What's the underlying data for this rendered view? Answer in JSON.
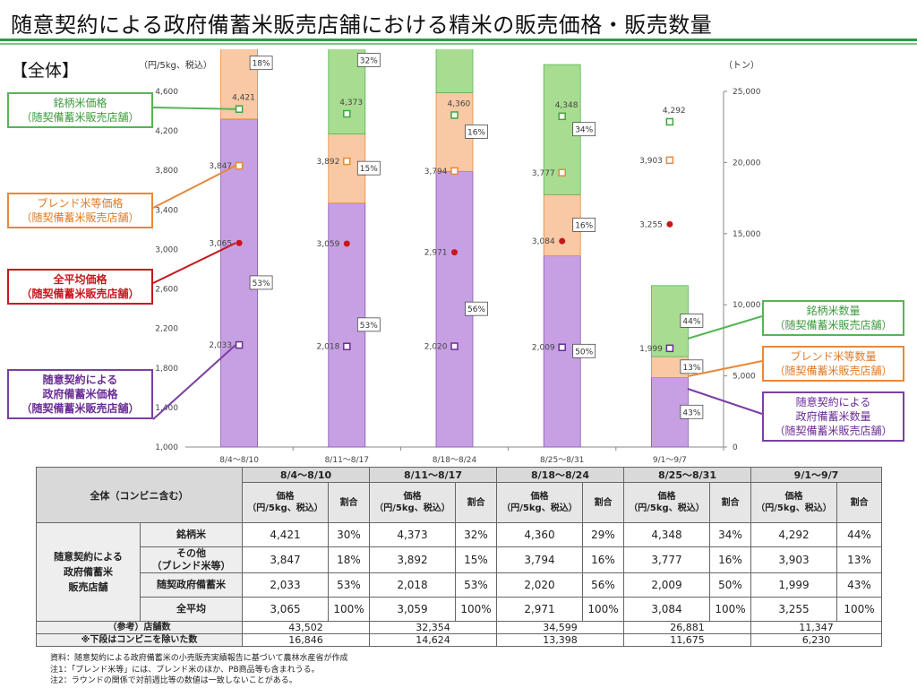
{
  "title": "随意契約による政府備蓄米販売店舗における精米の販売価格・販売数量",
  "section": "【全体】",
  "chart_data": {
    "type": "bar",
    "left_axis_label": "（円/5kg、税込）",
    "right_axis_label": "（トン）",
    "left_ylim": [
      1000,
      4600
    ],
    "left_ticks": [
      "1,000",
      "1,400",
      "1,800",
      "2,200",
      "2,600",
      "3,000",
      "3,400",
      "3,800",
      "4,200",
      "4,600"
    ],
    "right_ylim": [
      0,
      25000
    ],
    "right_ticks": [
      "0",
      "5,000",
      "10,000",
      "15,000",
      "20,000",
      "25,000"
    ],
    "categories": [
      "8/4～8/10",
      "8/11～8/17",
      "8/18～8/24",
      "8/25～8/31",
      "9/1～9/7"
    ],
    "quantity_total": [
      43502,
      32354,
      34599,
      26881,
      11347
    ],
    "quantity_shares": [
      {
        "name": "随契政府備蓄米",
        "color": "#c7a0e3",
        "stroke": "#8a55b8",
        "values": [
          53,
          53,
          56,
          50,
          43
        ],
        "labels": [
          "53%",
          "53%",
          "56%",
          "50%",
          "43%"
        ]
      },
      {
        "name": "ブレンド米等",
        "color": "#f8c9a4",
        "stroke": "#e8883a",
        "values": [
          18,
          15,
          16,
          16,
          13
        ],
        "labels": [
          "18%",
          "15%",
          "16%",
          "16%",
          "13%"
        ]
      },
      {
        "name": "銘柄米",
        "color": "#a8dd91",
        "stroke": "#56b556",
        "values": [
          30,
          32,
          29,
          34,
          44
        ],
        "labels": [
          "30%",
          "32%",
          "29%",
          "34%",
          "44%"
        ]
      }
    ],
    "price_series": [
      {
        "name": "銘柄米価格",
        "marker": "square",
        "color": "#3ca63c",
        "values": [
          4421,
          4373,
          4360,
          4348,
          4292
        ],
        "labels": [
          "4,421",
          "4,373",
          "4,360",
          "4,348",
          "4,292"
        ]
      },
      {
        "name": "ブレンド米等価格",
        "marker": "square",
        "color": "#e8883a",
        "values": [
          3847,
          3892,
          3794,
          3777,
          3903
        ],
        "labels": [
          "3,847",
          "3,892",
          "3,794",
          "3,777",
          "3,903"
        ]
      },
      {
        "name": "全平均価格",
        "marker": "dot",
        "color": "#c8161d",
        "values": [
          3065,
          3059,
          2971,
          3084,
          3255
        ],
        "labels": [
          "3,065",
          "3,059",
          "2,971",
          "3,084",
          "3,255"
        ]
      },
      {
        "name": "政府備蓄米価格",
        "marker": "square",
        "color": "#6a2d95",
        "values": [
          2033,
          2018,
          2020,
          2009,
          1999
        ],
        "labels": [
          "2,033",
          "2,018",
          "2,020",
          "2,009",
          "1,999"
        ]
      }
    ]
  },
  "callouts": {
    "brand_price": [
      "銘柄米価格",
      "（随契備蓄米販売店舗）"
    ],
    "blend_price": [
      "ブレンド米等価格",
      "（随契備蓄米販売店舗）"
    ],
    "avg_price": [
      "全平均価格",
      "（随契備蓄米販売店舗）"
    ],
    "gov_price": [
      "随意契約による",
      "政府備蓄米価格",
      "（随契備蓄米販売店舗）"
    ],
    "brand_qty": [
      "銘柄米数量",
      "（随契備蓄米販売店舗）"
    ],
    "blend_qty": [
      "ブレンド米等数量",
      "（随契備蓄米販売店舗）"
    ],
    "gov_qty": [
      "随意契約による",
      "政府備蓄米数量",
      "（随契備蓄米販売店舗）"
    ]
  },
  "table": {
    "corner": "全体（コンビニ含む）",
    "weeks": [
      "8/4～8/10",
      "8/11～8/17",
      "8/18～8/24",
      "8/25～8/31",
      "9/1～9/7"
    ],
    "price_header": [
      "価格",
      "（円/5kg、税込）"
    ],
    "share_header": "割合",
    "group_label": [
      "随意契約による",
      "政府備蓄米",
      "販売店舗"
    ],
    "rows": [
      {
        "label": [
          "銘柄米"
        ],
        "prices": [
          "4,421",
          "4,373",
          "4,360",
          "4,348",
          "4,292"
        ],
        "shares": [
          "30%",
          "32%",
          "29%",
          "34%",
          "44%"
        ]
      },
      {
        "label": [
          "その他",
          "（ブレンド米等）"
        ],
        "prices": [
          "3,847",
          "3,892",
          "3,794",
          "3,777",
          "3,903"
        ],
        "shares": [
          "18%",
          "15%",
          "16%",
          "16%",
          "13%"
        ]
      },
      {
        "label": [
          "随契政府備蓄米"
        ],
        "prices": [
          "2,033",
          "2,018",
          "2,020",
          "2,009",
          "1,999"
        ],
        "shares": [
          "53%",
          "53%",
          "56%",
          "50%",
          "43%"
        ]
      },
      {
        "label": [
          "全平均"
        ],
        "prices": [
          "3,065",
          "3,059",
          "2,971",
          "3,084",
          "3,255"
        ],
        "shares": [
          "100%",
          "100%",
          "100%",
          "100%",
          "100%"
        ]
      }
    ],
    "stores_label": "（参考）店舗数",
    "stores": [
      "43,502",
      "32,354",
      "34,599",
      "26,881",
      "11,347"
    ],
    "note_label": "※下段はコンビニを除いた数",
    "stores_excl": [
      "16,846",
      "14,624",
      "13,398",
      "11,675",
      "6,230"
    ]
  },
  "notes": [
    "資料：随意契約による政府備蓄米の小売販売実績報告に基づいて農林水産省が作成",
    "注1：「ブレンド米等」には、ブレンド米のほか、PB商品等も含まれうる。",
    "注2：ラウンドの関係で対前週比等の数値は一致しないことがある。"
  ]
}
